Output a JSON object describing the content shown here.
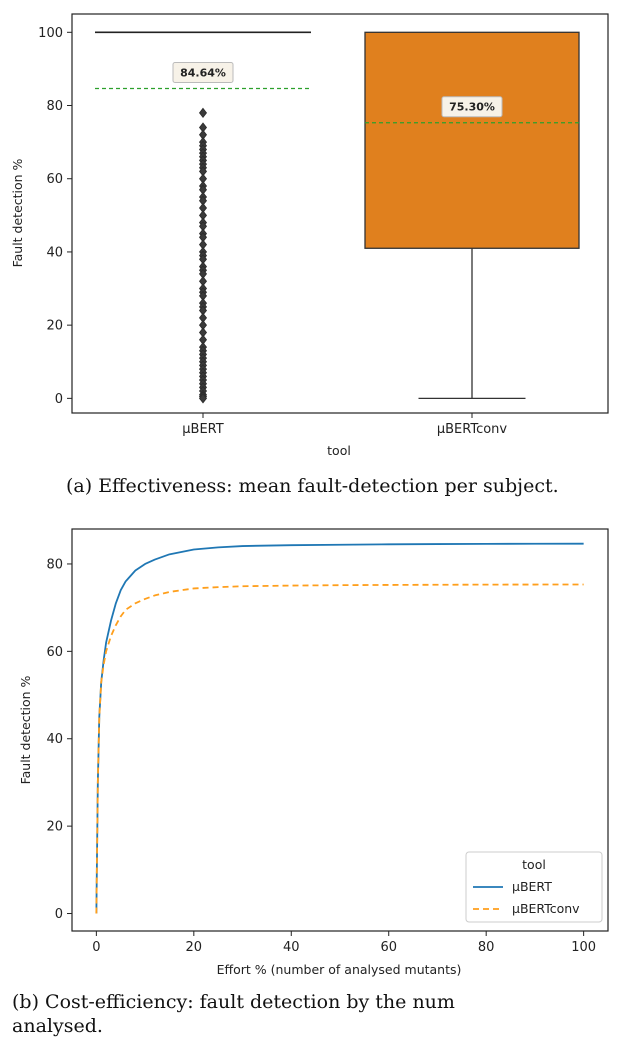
{
  "chart_data": [
    {
      "type": "box",
      "ylabel": "Fault detection %",
      "xlabel": "tool",
      "ylim": [
        -4,
        105
      ],
      "yticks": [
        0,
        20,
        40,
        60,
        80,
        100
      ],
      "categories": [
        "µBERT",
        "µBERTconv"
      ],
      "boxes": [
        {
          "name": "µBERT",
          "q1": 100,
          "median": 100,
          "q3": 100,
          "whisker_low": 100,
          "whisker_high": 100,
          "mean": 84.64,
          "mean_label": "84.64%",
          "color": "#1f77b4",
          "outliers": [
            78,
            74,
            72,
            70,
            69,
            68,
            67,
            66,
            65,
            64,
            63,
            62,
            60,
            58,
            57,
            55,
            54,
            52,
            50,
            48,
            47,
            45,
            44,
            42,
            40,
            39,
            38,
            36,
            35,
            34,
            32,
            30,
            29,
            28,
            26,
            25,
            24,
            22,
            20,
            18,
            16,
            14,
            13,
            12,
            11,
            10,
            9,
            8,
            7,
            6,
            5,
            4,
            3,
            2,
            1,
            0.5,
            0
          ]
        },
        {
          "name": "µBERTconv",
          "q1": 41,
          "median": 100,
          "q3": 100,
          "whisker_low": 0,
          "whisker_high": 100,
          "mean": 75.3,
          "mean_label": "75.30%",
          "color": "#e0801e",
          "outliers": []
        }
      ],
      "mean_line_color": "#2ca02c",
      "grid": false
    },
    {
      "type": "line",
      "ylabel": "Fault detection %",
      "xlabel": "Effort % (number of analysed mutants)",
      "xlim": [
        -5,
        105
      ],
      "ylim": [
        -4,
        88
      ],
      "xticks": [
        0,
        20,
        40,
        60,
        80,
        100
      ],
      "yticks": [
        0,
        20,
        40,
        60,
        80
      ],
      "legend_title": "tool",
      "legend_position": "lower right",
      "grid": false,
      "series": [
        {
          "name": "µBERT",
          "style": "solid",
          "color": "#1f77b4",
          "x": [
            0,
            0.3,
            0.6,
            1,
            1.5,
            2,
            3,
            4,
            5,
            6,
            8,
            10,
            12,
            15,
            20,
            25,
            30,
            40,
            50,
            60,
            70,
            80,
            90,
            100
          ],
          "y": [
            0,
            30,
            45,
            53,
            58,
            62,
            67,
            71,
            74,
            76,
            78.5,
            80,
            81,
            82.2,
            83.3,
            83.8,
            84.1,
            84.3,
            84.4,
            84.5,
            84.55,
            84.6,
            84.62,
            84.64
          ]
        },
        {
          "name": "µBERTconv",
          "style": "dashed",
          "color": "#ff9f1c",
          "x": [
            0,
            0.3,
            0.6,
            1,
            1.5,
            2,
            3,
            4,
            5,
            6,
            8,
            10,
            12,
            15,
            20,
            25,
            30,
            40,
            50,
            60,
            70,
            80,
            90,
            100
          ],
          "y": [
            0,
            30,
            45,
            53,
            57,
            60,
            63.5,
            66,
            68,
            69.5,
            71,
            72,
            72.8,
            73.6,
            74.4,
            74.7,
            74.9,
            75.05,
            75.15,
            75.2,
            75.24,
            75.27,
            75.29,
            75.3
          ]
        }
      ]
    }
  ],
  "captions": {
    "a": "(a) Effectiveness: mean fault-detection per subject.",
    "b_line1": "(b) Cost-efficiency: fault detection by the num",
    "b_line2": "analysed."
  }
}
